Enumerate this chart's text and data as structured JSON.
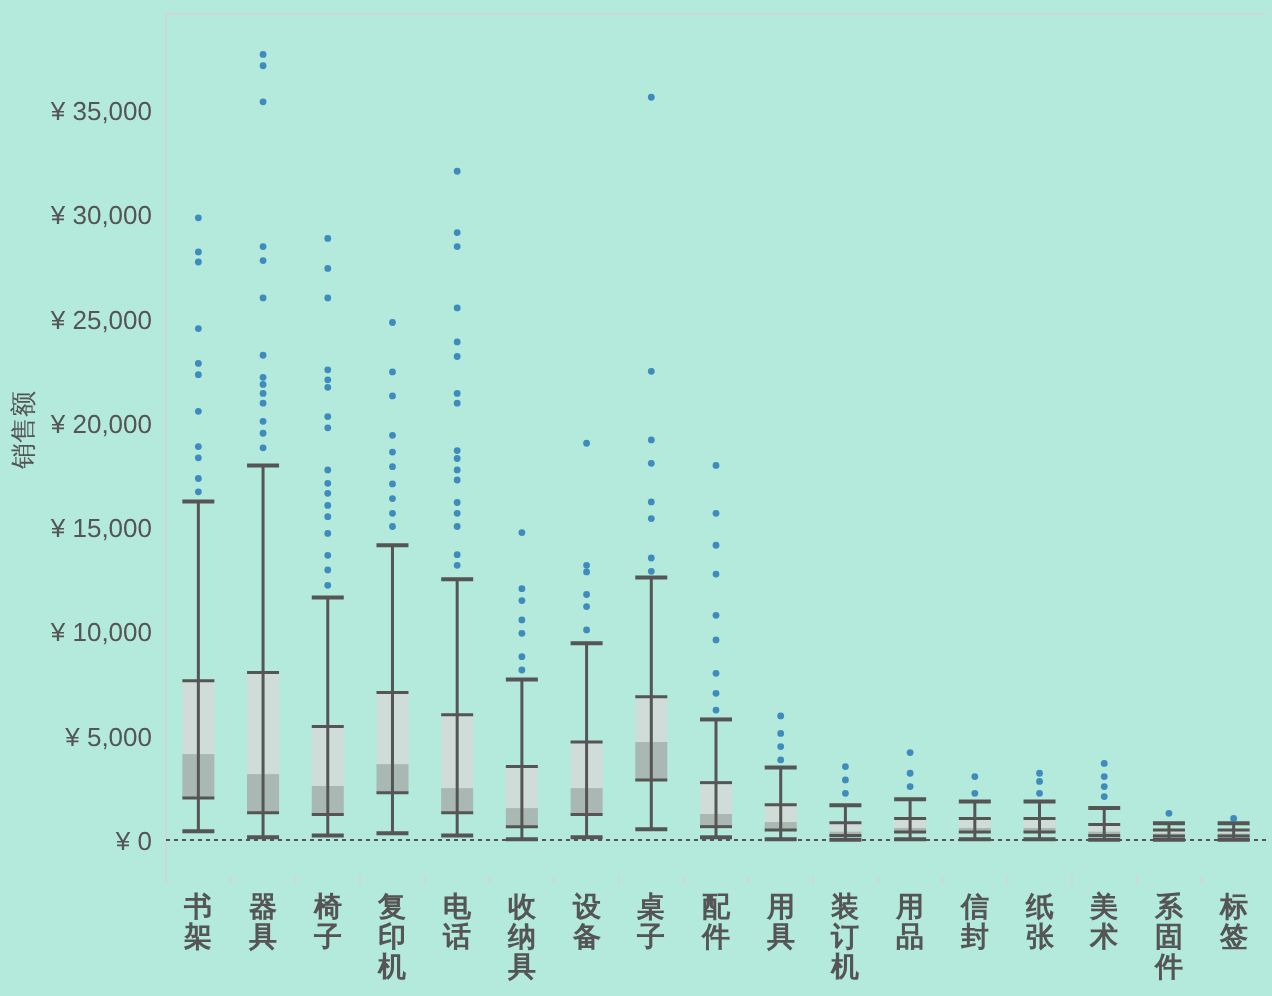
{
  "chart_data": {
    "type": "box",
    "ylabel": "销售额",
    "categories": [
      "书架",
      "器具",
      "椅子",
      "复印机",
      "电话",
      "收纳具",
      "设备",
      "桌子",
      "配件",
      "用具",
      "装订机",
      "用品",
      "信封",
      "纸张",
      "美术",
      "系固件",
      "标签"
    ],
    "series": [
      {
        "color": "#a9b8b2",
        "boxes": [
          {
            "low": 420,
            "q1": 2010,
            "median": 4120,
            "q3": 7640,
            "high": 16230
          },
          {
            "low": 130,
            "q1": 1310,
            "median": 3160,
            "q3": 8030,
            "high": 17960
          },
          {
            "low": 220,
            "q1": 1220,
            "median": 2590,
            "q3": 5440,
            "high": 11630
          },
          {
            "low": 320,
            "q1": 2270,
            "median": 3640,
            "q3": 7070,
            "high": 14130
          },
          {
            "low": 220,
            "q1": 1310,
            "median": 2490,
            "q3": 6010,
            "high": 12500
          },
          {
            "low": 30,
            "q1": 640,
            "median": 1530,
            "q3": 3520,
            "high": 7700
          },
          {
            "low": 130,
            "q1": 1220,
            "median": 2490,
            "q3": 4700,
            "high": 9430
          },
          {
            "low": 510,
            "q1": 2880,
            "median": 4700,
            "q3": 6870,
            "high": 12590
          },
          {
            "low": 130,
            "q1": 640,
            "median": 1250,
            "q3": 2750,
            "high": 5780
          },
          {
            "low": 30,
            "q1": 480,
            "median": 860,
            "q3": 1690,
            "high": 3480
          },
          {
            "low": 10,
            "q1": 220,
            "median": 410,
            "q3": 830,
            "high": 1660
          },
          {
            "low": 30,
            "q1": 380,
            "median": 580,
            "q3": 1030,
            "high": 1950
          },
          {
            "low": 30,
            "q1": 380,
            "median": 580,
            "q3": 1030,
            "high": 1850
          },
          {
            "low": 30,
            "q1": 380,
            "median": 580,
            "q3": 1030,
            "high": 1850
          },
          {
            "low": 10,
            "q1": 220,
            "median": 410,
            "q3": 740,
            "high": 1530
          },
          {
            "low": 10,
            "q1": 190,
            "median": 320,
            "q3": 480,
            "high": 800
          },
          {
            "low": 10,
            "q1": 190,
            "median": 320,
            "q3": 480,
            "high": 800
          }
        ]
      },
      {
        "type": "scatter",
        "color": "#2a7ab8",
        "x": [
          "书架",
          "书架",
          "书架",
          "书架",
          "书架",
          "书架",
          "书架",
          "书架",
          "书架",
          "书架",
          "书架",
          "器具",
          "器具",
          "器具",
          "器具",
          "器具",
          "器具",
          "器具",
          "器具",
          "器具",
          "器具",
          "器具",
          "器具",
          "器具",
          "器具",
          "椅子",
          "椅子",
          "椅子",
          "椅子",
          "椅子",
          "椅子",
          "椅子",
          "椅子",
          "椅子",
          "椅子",
          "椅子",
          "椅子",
          "椅子",
          "椅子",
          "椅子",
          "椅子",
          "椅子",
          "复印机",
          "复印机",
          "复印机",
          "复印机",
          "复印机",
          "复印机",
          "复印机",
          "复印机",
          "复印机",
          "复印机",
          "电话",
          "电话",
          "电话",
          "电话",
          "电话",
          "电话",
          "电话",
          "电话",
          "电话",
          "电话",
          "电话",
          "电话",
          "电话",
          "电话",
          "电话",
          "电话",
          "电话",
          "收纳具",
          "收纳具",
          "收纳具",
          "收纳具",
          "收纳具",
          "收纳具",
          "收纳具",
          "设备",
          "设备",
          "设备",
          "设备",
          "设备",
          "设备",
          "桌子",
          "桌子",
          "桌子",
          "桌子",
          "桌子",
          "桌子",
          "桌子",
          "桌子",
          "配件",
          "配件",
          "配件",
          "配件",
          "配件",
          "配件",
          "配件",
          "配件",
          "配件",
          "用具",
          "用具",
          "用具",
          "用具",
          "装订机",
          "装订机",
          "装订机",
          "用品",
          "用品",
          "用品",
          "信封",
          "信封",
          "纸张",
          "纸张",
          "纸张",
          "美术",
          "美术",
          "美术",
          "美术",
          "系固件",
          "标签"
        ],
        "values": [
          29830,
          28190,
          27710,
          24520,
          22850,
          22310,
          20550,
          18860,
          18320,
          17330,
          16690,
          37660,
          37120,
          35390,
          28450,
          27780,
          25990,
          23240,
          22180,
          21840,
          21410,
          20940,
          20070,
          19500,
          18800,
          28840,
          27400,
          25990,
          22540,
          22060,
          21700,
          20300,
          19760,
          17740,
          17100,
          16620,
          16040,
          15500,
          14700,
          13650,
          12950,
          12210,
          24810,
          22440,
          21290,
          19400,
          18600,
          17900,
          17070,
          16370,
          15660,
          15030,
          32060,
          29120,
          28450,
          25510,
          23880,
          23180,
          21410,
          20940,
          18670,
          18290,
          17740,
          17260,
          16180,
          15660,
          15030,
          13680,
          13170,
          14740,
          12050,
          11480,
          10550,
          9910,
          8790,
          8150,
          19020,
          13170,
          12850,
          11770,
          11190,
          10070,
          35610,
          22470,
          19180,
          18060,
          16210,
          15410,
          13520,
          12880,
          17960,
          15660,
          14130,
          12750,
          10770,
          9590,
          7990,
          7030,
          6230,
          5950,
          5110,
          4480,
          3840,
          3520,
          2880,
          2240,
          4190,
          3200,
          2560,
          3040,
          2240,
          3200,
          2810,
          2240,
          3670,
          3040,
          2560,
          2080,
          1280,
          1030
        ]
      }
    ],
    "ylim": [
      0,
      39600
    ],
    "yticks": [
      {
        "value": 0,
        "label": "¥ 0"
      },
      {
        "value": 5000,
        "label": "¥ 5,000"
      },
      {
        "value": 10000,
        "label": "¥ 10,000"
      },
      {
        "value": 15000,
        "label": "¥ 15,000"
      },
      {
        "value": 20000,
        "label": "¥ 20,000"
      },
      {
        "value": 25000,
        "label": "¥ 25,000"
      },
      {
        "value": 30000,
        "label": "¥ 30,000"
      },
      {
        "value": 35000,
        "label": "¥ 35,000"
      }
    ],
    "ref_lines": [
      {
        "axis": "y",
        "value": 0,
        "line_style": "dotted",
        "color": "#555555"
      }
    ]
  }
}
